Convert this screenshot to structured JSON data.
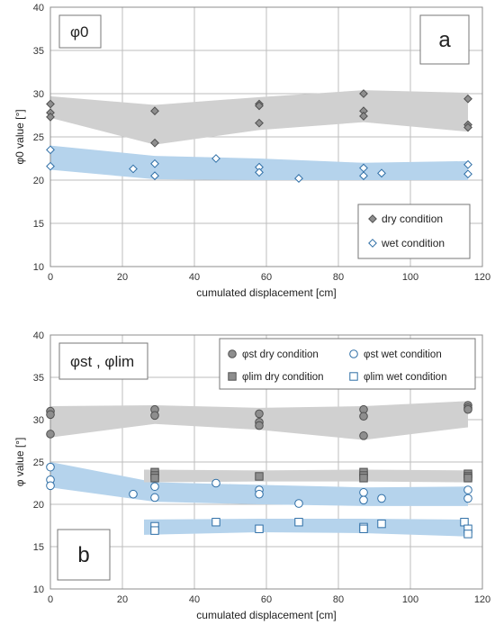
{
  "colors": {
    "gray_band": "#d0d0d0",
    "blue_band": "#b5d3ec",
    "dry_marker": "#8e8e8e",
    "wet_marker": "#ffffff",
    "wet_stroke": "#2e6ea6",
    "dry_stroke": "#505050"
  },
  "chart_data": [
    {
      "panel": "a",
      "type": "scatter",
      "title_box": "φ0",
      "xlabel": "cumulated displacement [cm]",
      "ylabel": "φ0 value [°]",
      "xlim": [
        0,
        120
      ],
      "ylim": [
        10,
        40
      ],
      "xticks": [
        "0",
        "20",
        "40",
        "60",
        "80",
        "100",
        "120"
      ],
      "yticks": [
        "10",
        "15",
        "20",
        "25",
        "30",
        "35",
        "40"
      ],
      "grid": true,
      "legend_position": "bottom-right",
      "series": [
        {
          "name": "dry condition",
          "marker": "diamond",
          "fill": "gray",
          "points": [
            [
              0,
              28.8
            ],
            [
              0,
              27.8
            ],
            [
              0,
              27.3
            ],
            [
              29,
              28.0
            ],
            [
              29,
              24.3
            ],
            [
              58,
              28.8
            ],
            [
              58,
              28.6
            ],
            [
              58,
              26.6
            ],
            [
              87,
              30.0
            ],
            [
              87,
              28.0
            ],
            [
              87,
              27.4
            ],
            [
              116,
              29.4
            ],
            [
              116,
              26.4
            ],
            [
              116,
              26.1
            ]
          ]
        },
        {
          "name": "wet condition",
          "marker": "diamond",
          "fill": "white",
          "points": [
            [
              0,
              23.5
            ],
            [
              0,
              21.6
            ],
            [
              23,
              21.3
            ],
            [
              29,
              21.9
            ],
            [
              29,
              20.5
            ],
            [
              46,
              22.5
            ],
            [
              58,
              21.5
            ],
            [
              58,
              20.9
            ],
            [
              69,
              20.2
            ],
            [
              87,
              21.4
            ],
            [
              87,
              20.5
            ],
            [
              92,
              20.8
            ],
            [
              116,
              21.8
            ],
            [
              116,
              20.7
            ]
          ]
        }
      ],
      "bands": [
        {
          "color": "gray",
          "upper": [
            [
              0,
              29.7
            ],
            [
              29,
              28.7
            ],
            [
              58,
              29.6
            ],
            [
              87,
              30.4
            ],
            [
              116,
              30.1
            ]
          ],
          "lower": [
            [
              0,
              27.2
            ],
            [
              29,
              24.1
            ],
            [
              58,
              25.8
            ],
            [
              87,
              26.7
            ],
            [
              116,
              25.6
            ]
          ]
        },
        {
          "color": "blue",
          "upper": [
            [
              0,
              24.0
            ],
            [
              29,
              22.8
            ],
            [
              58,
              22.5
            ],
            [
              87,
              22.0
            ],
            [
              116,
              22.2
            ]
          ],
          "lower": [
            [
              0,
              21.2
            ],
            [
              29,
              20.1
            ],
            [
              58,
              20.0
            ],
            [
              87,
              20.0
            ],
            [
              116,
              20.0
            ]
          ]
        }
      ],
      "panel_letter": "a"
    },
    {
      "panel": "b",
      "type": "scatter",
      "title_box": "φst , φlim",
      "xlabel": "cumulated displacement [cm]",
      "ylabel": "φ value [°]",
      "xlim": [
        0,
        120
      ],
      "ylim": [
        10,
        40
      ],
      "xticks": [
        "0",
        "20",
        "40",
        "60",
        "80",
        "100",
        "120"
      ],
      "yticks": [
        "10",
        "15",
        "20",
        "25",
        "30",
        "35",
        "40"
      ],
      "grid": true,
      "legend_position": "top-right",
      "series": [
        {
          "name": "φst dry condition",
          "marker": "circle",
          "fill": "gray",
          "points": [
            [
              0,
              31.0
            ],
            [
              0,
              30.6
            ],
            [
              0,
              28.3
            ],
            [
              29,
              31.2
            ],
            [
              29,
              30.5
            ],
            [
              58,
              30.7
            ],
            [
              58,
              29.7
            ],
            [
              58,
              29.3
            ],
            [
              87,
              31.2
            ],
            [
              87,
              30.4
            ],
            [
              87,
              28.1
            ],
            [
              116,
              31.7
            ],
            [
              116,
              31.4
            ],
            [
              116,
              31.2
            ]
          ]
        },
        {
          "name": "φst wet condition",
          "marker": "circle",
          "fill": "white",
          "points": [
            [
              0,
              24.4
            ],
            [
              0,
              22.9
            ],
            [
              0,
              22.2
            ],
            [
              23,
              21.2
            ],
            [
              29,
              22.1
            ],
            [
              29,
              20.8
            ],
            [
              46,
              22.5
            ],
            [
              58,
              21.7
            ],
            [
              58,
              21.2
            ],
            [
              69,
              20.1
            ],
            [
              87,
              21.4
            ],
            [
              87,
              20.5
            ],
            [
              92,
              20.7
            ],
            [
              116,
              21.7
            ],
            [
              116,
              20.7
            ]
          ]
        },
        {
          "name": "φlim dry condition",
          "marker": "square",
          "fill": "gray",
          "points": [
            [
              29,
              23.8
            ],
            [
              29,
              23.4
            ],
            [
              29,
              23.1
            ],
            [
              58,
              23.3
            ],
            [
              87,
              23.8
            ],
            [
              87,
              23.4
            ],
            [
              87,
              23.1
            ],
            [
              116,
              23.6
            ],
            [
              116,
              23.3
            ],
            [
              116,
              23.1
            ]
          ]
        },
        {
          "name": "φlim wet condition",
          "marker": "square",
          "fill": "white",
          "points": [
            [
              29,
              17.4
            ],
            [
              29,
              16.9
            ],
            [
              46,
              17.9
            ],
            [
              58,
              17.1
            ],
            [
              69,
              17.9
            ],
            [
              87,
              17.3
            ],
            [
              87,
              17.1
            ],
            [
              92,
              17.7
            ],
            [
              115,
              17.9
            ],
            [
              116,
              17.1
            ],
            [
              116,
              16.5
            ]
          ]
        }
      ],
      "bands": [
        {
          "color": "gray",
          "upper": [
            [
              0,
              31.6
            ],
            [
              29,
              31.7
            ],
            [
              58,
              31.4
            ],
            [
              87,
              31.6
            ],
            [
              116,
              32.2
            ]
          ],
          "lower": [
            [
              0,
              27.9
            ],
            [
              29,
              29.5
            ],
            [
              58,
              28.8
            ],
            [
              87,
              27.6
            ],
            [
              116,
              29.1
            ]
          ]
        },
        {
          "color": "blue",
          "upper": [
            [
              0,
              25.0
            ],
            [
              29,
              22.6
            ],
            [
              58,
              22.3
            ],
            [
              87,
              22.0
            ],
            [
              116,
              22.1
            ]
          ],
          "lower": [
            [
              0,
              22.0
            ],
            [
              29,
              20.3
            ],
            [
              58,
              20.0
            ],
            [
              87,
              19.8
            ],
            [
              116,
              19.8
            ]
          ]
        },
        {
          "color": "gray",
          "upper": [
            [
              26,
              24.1
            ],
            [
              58,
              24.0
            ],
            [
              87,
              24.1
            ],
            [
              116,
              24.0
            ]
          ],
          "lower": [
            [
              26,
              22.6
            ],
            [
              58,
              22.7
            ],
            [
              87,
              22.7
            ],
            [
              116,
              22.6
            ]
          ]
        },
        {
          "color": "blue",
          "upper": [
            [
              26,
              18.2
            ],
            [
              58,
              18.3
            ],
            [
              87,
              18.3
            ],
            [
              116,
              18.2
            ]
          ],
          "lower": [
            [
              26,
              16.4
            ],
            [
              58,
              16.7
            ],
            [
              87,
              16.6
            ],
            [
              116,
              16.2
            ]
          ]
        }
      ],
      "panel_letter": "b"
    }
  ]
}
